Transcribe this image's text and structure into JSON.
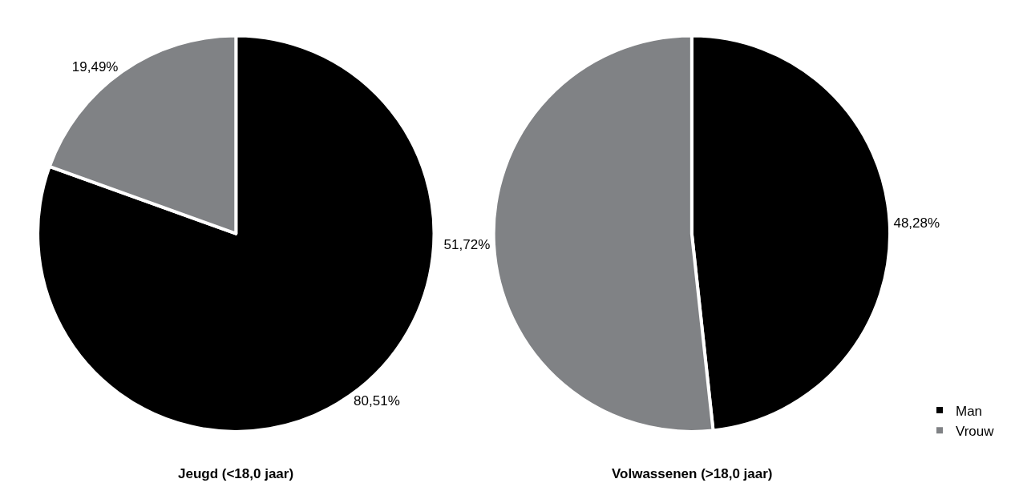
{
  "chart_data": [
    {
      "type": "pie",
      "title": "Jeugd (<18,0 jaar)",
      "categories": [
        null,
        null
      ],
      "values": [
        80.51,
        19.49
      ],
      "colors": [
        "#000000",
        "#808285"
      ],
      "value_labels": [
        "80,51%",
        "19,49%"
      ]
    },
    {
      "type": "pie",
      "title": "Volwassenen (>18,0 jaar)",
      "categories": [
        "Man",
        "Vrouw"
      ],
      "values": [
        48.28,
        51.72
      ],
      "colors": [
        "#000000",
        "#808285"
      ],
      "value_labels": [
        "48,28%",
        "51,72%"
      ],
      "legend": "bottom right"
    }
  ]
}
